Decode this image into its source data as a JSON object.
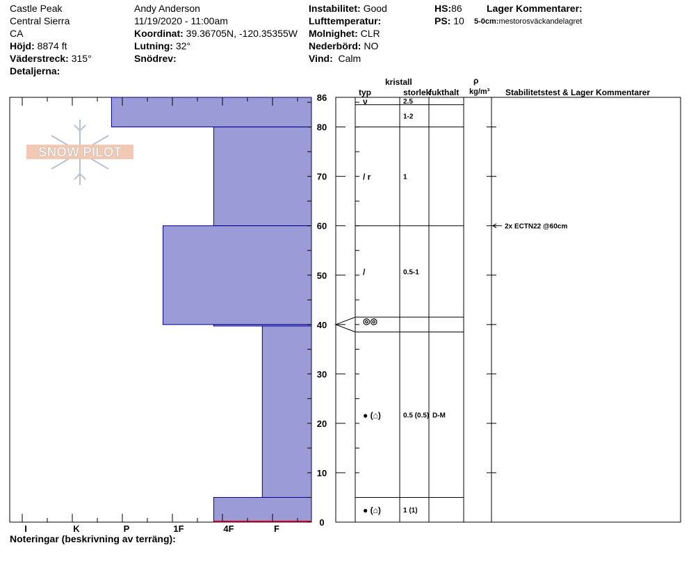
{
  "header": {
    "site": "Castle Peak",
    "region": "Central Sierra",
    "state": "CA",
    "elevation_label": "Höjd:",
    "elevation_value": "8874 ft",
    "aspect_label": "Väderstreck:",
    "aspect_value": "315°",
    "details_label": "Detaljerna:",
    "observer": "Andy Anderson",
    "datetime": "11/19/2020 - 11:00am",
    "coord_label": "Koordinat:",
    "coord_value": "39.36705N, -120.35355W",
    "slope_label": "Lutning:",
    "slope_value": "32°",
    "drift_label": "Snödrev:",
    "instability_label": "Instabilitet:",
    "instability_value": "Good",
    "airtemp_label": "Lufttemperatur:",
    "sky_label": "Molnighet:",
    "sky_value": "CLR",
    "precip_label": "Nederbörd:",
    "precip_value": "NO",
    "wind_label": "Vind:",
    "wind_value": "Calm",
    "hs_label": "HS:",
    "hs_value": "86",
    "ps_label": "PS:",
    "ps_value": "10",
    "layer_comments_label": "Lager Kommentarer:",
    "layer_comment_range": "5-0cm:",
    "layer_comment_text": "mestorosväckandelagret"
  },
  "logo_text": "SNOW PILOT",
  "notes_label": "Noteringar (beskrivning av terräng):",
  "columns": {
    "type": "typ",
    "crystal": "kristall",
    "size": "storlek",
    "moisture": "fukthalt",
    "rho": "ρ",
    "density_unit": "kg/m³",
    "stability": "Stabilitetstest & Lager Kommentarer"
  },
  "colors": {
    "hardness_fill": "#9b9bd7",
    "hardness_stroke": "#00008b",
    "ground": "#cc0000"
  },
  "chart_data": {
    "type": "snow-profile",
    "y_unit": "cm",
    "ylim": [
      0,
      86
    ],
    "y_ticks": [
      0,
      10,
      20,
      30,
      40,
      50,
      60,
      70,
      80,
      86
    ],
    "hardness_scale": [
      "I",
      "K",
      "P",
      "1F",
      "4F",
      "F"
    ],
    "hardness_layers": [
      {
        "top": 86,
        "bottom": 80,
        "hardness": 1.7
      },
      {
        "top": 80,
        "bottom": 60,
        "hardness": 3.7
      },
      {
        "top": 60,
        "bottom": 40,
        "hardness": 2.7
      },
      {
        "top": 40,
        "bottom": 39.7,
        "hardness": 3.7
      },
      {
        "top": 39.7,
        "bottom": 5,
        "hardness": 4.7
      },
      {
        "top": 5,
        "bottom": 0,
        "hardness": 3.7
      }
    ],
    "layers": [
      {
        "top": 86,
        "bottom": 84.5,
        "grain": "ν",
        "size": "2.5",
        "moisture": ""
      },
      {
        "top": 84.5,
        "bottom": 80,
        "grain": "",
        "size": "1-2",
        "moisture": ""
      },
      {
        "top": 80,
        "bottom": 60,
        "grain": "/ r",
        "size": "1",
        "moisture": ""
      },
      {
        "top": 60,
        "bottom": 41.5,
        "grain": "/",
        "size": "0.5-1",
        "moisture": ""
      },
      {
        "top": 41.5,
        "bottom": 38.5,
        "grain": "◎◎",
        "size": "",
        "moisture": ""
      },
      {
        "top": 38.5,
        "bottom": 5,
        "grain": "● (⌂)",
        "size": "0.5 (0.5)",
        "moisture": "D-M"
      },
      {
        "top": 5,
        "bottom": 0,
        "grain": "● (⌂)",
        "size": "1 (1)",
        "moisture": ""
      }
    ],
    "tests": [
      {
        "depth": 60,
        "label": "2x ECTN22 @60cm"
      }
    ]
  }
}
